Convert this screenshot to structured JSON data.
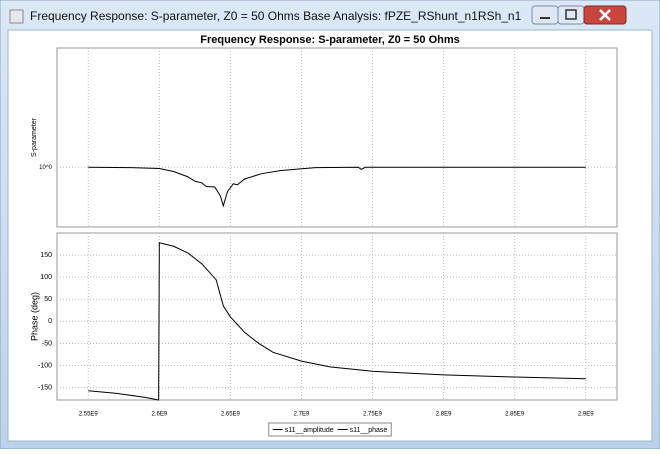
{
  "window": {
    "title": "Frequency Response: S-parameter, Z0 = 50 Ohms Base Analysis: fPZE_RShunt_n1RSh_n1",
    "heading": "Frequency Response: S-parameter, Z0 = 50 Ohms"
  },
  "chart_data": [
    {
      "type": "line",
      "y_label": "S-parameter",
      "log_y": true,
      "grid": true,
      "x": [
        2550000000.0,
        2580000000.0,
        2600000000.0,
        2610000000.0,
        2620000000.0,
        2625000000.0,
        2630000000.0,
        2633000000.0,
        2639000000.0,
        2643000000.0,
        2645000000.0,
        2648000000.0,
        2652000000.0,
        2655000000.0,
        2660000000.0,
        2672000000.0,
        2685000000.0,
        2695000000.0,
        2710000000.0,
        2740000000.0,
        2742000000.0,
        2745000000.0,
        2800000000.0,
        2850000000.0,
        2900000000.0
      ],
      "series": [
        {
          "name": "s11__amplitude",
          "color": "#000000",
          "values": [
            1.0,
            0.999,
            0.997,
            0.99,
            0.978,
            0.968,
            0.964,
            0.956,
            0.955,
            0.935,
            0.914,
            0.945,
            0.962,
            0.96,
            0.973,
            0.985,
            0.992,
            0.995,
            0.999,
            1.0,
            0.995,
            1.0,
            1.0,
            1.0,
            1.0
          ]
        }
      ],
      "xlim": [
        2528000000.0,
        2922000000.0
      ],
      "ylim": [
        0.87,
        1.32
      ],
      "xticks": [
        2550000000.0,
        2600000000.0,
        2650000000.0,
        2700000000.0,
        2750000000.0,
        2800000000.0,
        2850000000.0,
        2900000000.0
      ],
      "yticks": [
        {
          "value": 1,
          "label": "10^0"
        }
      ]
    },
    {
      "type": "line",
      "y_label": "Phase (deg)",
      "grid": true,
      "x": [
        2550000000.0,
        2570000000.0,
        2590000000.0,
        2599500000.0,
        2600000000.0,
        2610000000.0,
        2620000000.0,
        2630000000.0,
        2640000000.0,
        2645000000.0,
        2650000000.0,
        2660000000.0,
        2670000000.0,
        2680000000.0,
        2700000000.0,
        2720000000.0,
        2750000000.0,
        2800000000.0,
        2850000000.0,
        2900000000.0
      ],
      "series": [
        {
          "name": "s11__phase",
          "color": "#000000",
          "values": [
            -157,
            -163,
            -172,
            -178,
            178,
            170,
            155,
            130,
            94,
            35,
            10,
            -25,
            -50,
            -70,
            -90,
            -103,
            -113,
            -121,
            -126,
            -130
          ]
        }
      ],
      "xlim": [
        2528000000.0,
        2922000000.0
      ],
      "ylim": [
        -178,
        200
      ],
      "xticks": [
        {
          "value": 2550000000.0,
          "label": "2.55E9"
        },
        {
          "value": 2600000000.0,
          "label": "2.6E9"
        },
        {
          "value": 2650000000.0,
          "label": "2.65E9"
        },
        {
          "value": 2700000000.0,
          "label": "2.7E9"
        },
        {
          "value": 2750000000.0,
          "label": "2.75E9"
        },
        {
          "value": 2800000000.0,
          "label": "2.8E9"
        },
        {
          "value": 2850000000.0,
          "label": "2.85E9"
        },
        {
          "value": 2900000000.0,
          "label": "2.9E9"
        }
      ],
      "yticks": [
        -150,
        -100,
        -50,
        0,
        50,
        100,
        150
      ]
    }
  ]
}
